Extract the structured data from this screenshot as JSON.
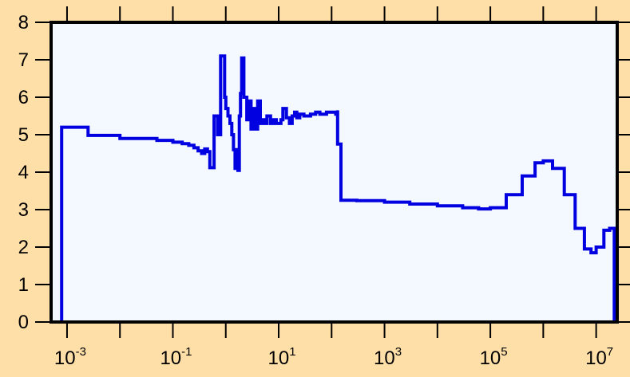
{
  "chart_data": {
    "type": "line",
    "style": "step",
    "title": "",
    "xlabel": "",
    "ylabel": "",
    "x_scale": "log",
    "xlim": [
      0.0005,
      25000000
    ],
    "ylim": [
      0,
      8
    ],
    "grid": false,
    "legend": "none",
    "colors": {
      "background": "#FFDFA8",
      "plot_area": "#F4F8FF",
      "line": "#0000E0",
      "frame": "#000000"
    },
    "x_ticks": [
      {
        "base": "10",
        "exp": "-3",
        "value": 0.001
      },
      {
        "base": "10",
        "exp": "-1",
        "value": 0.1
      },
      {
        "base": "10",
        "exp": "1",
        "value": 10
      },
      {
        "base": "10",
        "exp": "3",
        "value": 1000
      },
      {
        "base": "10",
        "exp": "5",
        "value": 100000
      },
      {
        "base": "10",
        "exp": "7",
        "value": 10000000
      }
    ],
    "y_ticks": [
      "0",
      "1",
      "2",
      "3",
      "4",
      "5",
      "6",
      "7",
      "8"
    ],
    "series": [
      {
        "x": [
          0.00079,
          0.00079,
          0.0025,
          0.0025,
          0.01,
          0.01,
          0.05,
          0.1,
          0.15,
          0.2,
          0.25,
          0.3,
          0.35,
          0.4,
          0.45,
          0.5,
          0.6,
          0.6,
          0.7,
          0.7,
          0.8,
          0.8,
          0.95,
          1.0,
          1.1,
          1.2,
          1.3,
          1.4,
          1.5,
          1.6,
          1.7,
          1.8,
          1.8,
          1.9,
          1.9,
          2.0,
          2.2,
          2.5,
          2.8,
          3.0,
          3.2,
          3.5,
          4.0,
          4.5,
          5.0,
          5.5,
          6.0,
          7.0,
          8.0,
          9.0,
          10.0,
          11.0,
          12.0,
          14.0,
          16.0,
          18.0,
          20.0,
          22.0,
          25.0,
          30.0,
          40.0,
          50.0,
          60.0,
          80.0,
          100.0,
          120.0,
          130.0,
          130.0,
          150.0,
          150.0,
          300.0,
          1000.0,
          3000.0,
          10000.0,
          30000.0,
          60000.0,
          100000.0,
          200000.0,
          400000.0,
          700000.0,
          1000000.0,
          1500000.0,
          2500000.0,
          4000000.0,
          6000000.0,
          8000000.0,
          10000000.0,
          14000000.0,
          18000000.0,
          22000000.0,
          22000000.0
        ],
        "y": [
          0,
          5.2,
          5.2,
          4.98,
          4.98,
          4.9,
          4.85,
          4.8,
          4.76,
          4.72,
          4.65,
          4.57,
          4.5,
          4.62,
          4.55,
          4.12,
          4.12,
          5.5,
          5.5,
          5.0,
          5.0,
          7.1,
          6.0,
          5.7,
          5.5,
          5.3,
          5.0,
          4.6,
          4.1,
          4.6,
          4.05,
          4.05,
          5.5,
          5.5,
          6.1,
          7.05,
          6.0,
          5.4,
          5.9,
          5.15,
          5.7,
          5.15,
          5.9,
          5.3,
          5.4,
          5.3,
          5.5,
          5.3,
          5.4,
          5.3,
          5.3,
          5.4,
          5.7,
          5.45,
          5.3,
          5.5,
          5.6,
          5.45,
          5.55,
          5.5,
          5.55,
          5.6,
          5.55,
          5.6,
          5.6,
          5.55,
          5.65,
          4.75,
          4.75,
          3.25,
          3.24,
          3.2,
          3.15,
          3.1,
          3.05,
          3.02,
          3.05,
          3.4,
          3.9,
          4.25,
          4.3,
          4.1,
          3.4,
          2.5,
          1.95,
          1.85,
          2.0,
          2.45,
          2.5,
          2.45,
          0
        ]
      }
    ]
  }
}
